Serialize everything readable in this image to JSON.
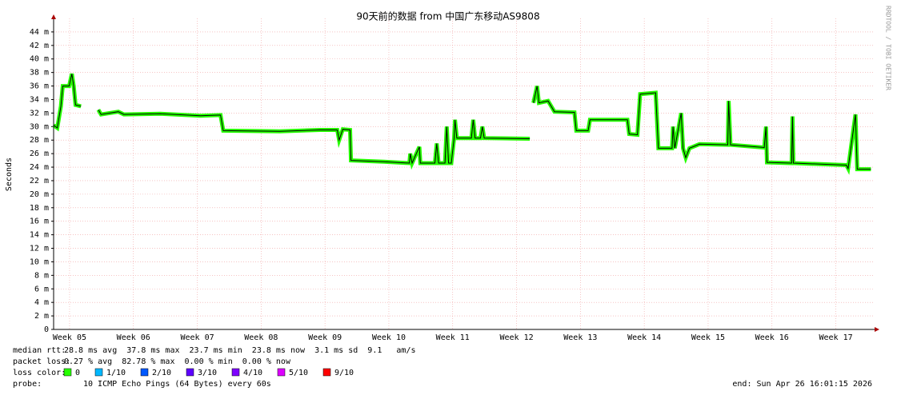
{
  "chart_data": {
    "type": "line",
    "title": "90天前的数据 from 中国广东移动AS9808",
    "ylabel": "Seconds",
    "side_note": "RRDTOOL / TOBI OETIKER",
    "color": "#26ff00",
    "line_color": "#000000",
    "xlim": [
      0,
      90
    ],
    "xticks": [
      {
        "value": 1.75,
        "label": "Week 05"
      },
      {
        "value": 8.75,
        "label": "Week 06"
      },
      {
        "value": 15.75,
        "label": "Week 07"
      },
      {
        "value": 22.75,
        "label": "Week 08"
      },
      {
        "value": 29.75,
        "label": "Week 09"
      },
      {
        "value": 36.75,
        "label": "Week 10"
      },
      {
        "value": 43.75,
        "label": "Week 11"
      },
      {
        "value": 50.75,
        "label": "Week 12"
      },
      {
        "value": 57.75,
        "label": "Week 13"
      },
      {
        "value": 64.75,
        "label": "Week 14"
      },
      {
        "value": 71.75,
        "label": "Week 15"
      },
      {
        "value": 78.75,
        "label": "Week 16"
      },
      {
        "value": 85.75,
        "label": "Week 17"
      }
    ],
    "ylim": [
      0,
      46
    ],
    "yticks": [
      0,
      {
        "value": 2,
        "label": "2 m"
      },
      {
        "value": 4,
        "label": "4 m"
      },
      {
        "value": 6,
        "label": "6 m"
      },
      {
        "value": 8,
        "label": "8 m"
      },
      {
        "value": 10,
        "label": "10 m"
      },
      {
        "value": 12,
        "label": "12 m"
      },
      {
        "value": 14,
        "label": "14 m"
      },
      {
        "value": 16,
        "label": "16 m"
      },
      {
        "value": 18,
        "label": "18 m"
      },
      {
        "value": 20,
        "label": "20 m"
      },
      {
        "value": 22,
        "label": "22 m"
      },
      {
        "value": 24,
        "label": "24 m"
      },
      {
        "value": 26,
        "label": "26 m"
      },
      {
        "value": 28,
        "label": "28 m"
      },
      {
        "value": 30,
        "label": "30 m"
      },
      {
        "value": 32,
        "label": "32 m"
      },
      {
        "value": 34,
        "label": "34 m"
      },
      {
        "value": 36,
        "label": "36 m"
      },
      {
        "value": 38,
        "label": "38 m"
      },
      {
        "value": 40,
        "label": "40 m"
      },
      {
        "value": 42,
        "label": "42 m"
      },
      {
        "value": 44,
        "label": "44 m"
      }
    ],
    "grid": true,
    "x": [
      0,
      0.4,
      0.8,
      1.0,
      1.7,
      2.0,
      2.2,
      2.4,
      3.0,
      3.5,
      4.9,
      5.2,
      7.1,
      7.7,
      11.7,
      16.1,
      18.3,
      18.6,
      24.8,
      29.2,
      31.1,
      31.3,
      31.7,
      32.5,
      32.6,
      36.2,
      39.0,
      39.1,
      39.3,
      40.1,
      40.2,
      41.8,
      42.0,
      42.2,
      42.9,
      43.1,
      43.3,
      43.6,
      43.9,
      44.0,
      44.2,
      45.8,
      46.0,
      46.2,
      46.8,
      47.0,
      47.2,
      52.2,
      52.4,
      52.6,
      53.0,
      53.2,
      54.2,
      54.9,
      57.1,
      57.3,
      58.6,
      58.8,
      62.9,
      63.1,
      64.0,
      64.3,
      66.0,
      66.3,
      67.8,
      67.9,
      68.1,
      68.8,
      69.0,
      69.3,
      69.7,
      70.8,
      73.9,
      74.0,
      74.2,
      77.9,
      78.1,
      78.2,
      80.9,
      81.0,
      81.1,
      86.9,
      87.1,
      87.9,
      88.1,
      89.6
    ],
    "values": [
      30.2,
      29.8,
      33,
      36,
      36,
      37.8,
      36,
      33.2,
      33,
      null,
      32.5,
      31.8,
      32.2,
      31.8,
      31.9,
      31.6,
      31.7,
      29.4,
      29.3,
      29.5,
      29.5,
      28,
      29.6,
      29.5,
      25,
      24.8,
      24.6,
      26,
      24.6,
      27,
      24.6,
      24.6,
      27.5,
      24.6,
      24.6,
      30,
      24.6,
      24.6,
      28.3,
      31,
      28.3,
      28.3,
      31,
      28.3,
      28.3,
      30,
      28.3,
      28.2,
      null,
      33.5,
      36,
      33.5,
      33.8,
      32.2,
      32.1,
      29.4,
      29.4,
      31,
      31,
      28.9,
      28.8,
      34.8,
      35,
      26.8,
      26.8,
      30,
      26.8,
      32,
      26.8,
      25.4,
      26.8,
      27.4,
      27.3,
      33.8,
      27.3,
      26.9,
      30,
      24.7,
      24.6,
      31.5,
      24.6,
      24.3,
      23.8,
      31.8,
      23.7,
      23.7
    ],
    "stats": [
      {
        "label": "median rtt:",
        "text": "28.8 ms avg  37.8 ms max  23.7 ms min  23.8 ms now  3.1 ms sd  9.1   am/s"
      },
      {
        "label": "packet loss:",
        "text": "0.27 % avg  82.78 % max  0.00 % min  0.00 % now"
      }
    ],
    "loss_legend": {
      "label": "loss color:",
      "items": [
        {
          "label": "0",
          "color": "#26ff00"
        },
        {
          "label": "1/10",
          "color": "#00b8ff"
        },
        {
          "label": "2/10",
          "color": "#0059ff"
        },
        {
          "label": "3/10",
          "color": "#5e00ff"
        },
        {
          "label": "4/10",
          "color": "#7e00ff"
        },
        {
          "label": "5/10",
          "color": "#dd00ff"
        },
        {
          "label": "9/10",
          "color": "#ff0000"
        }
      ]
    },
    "probe": {
      "label": "probe:",
      "text": "10 ICMP Echo Pings (64 Bytes) every 60s"
    },
    "end": "end: Sun Apr 26 16:01:15 2026"
  }
}
